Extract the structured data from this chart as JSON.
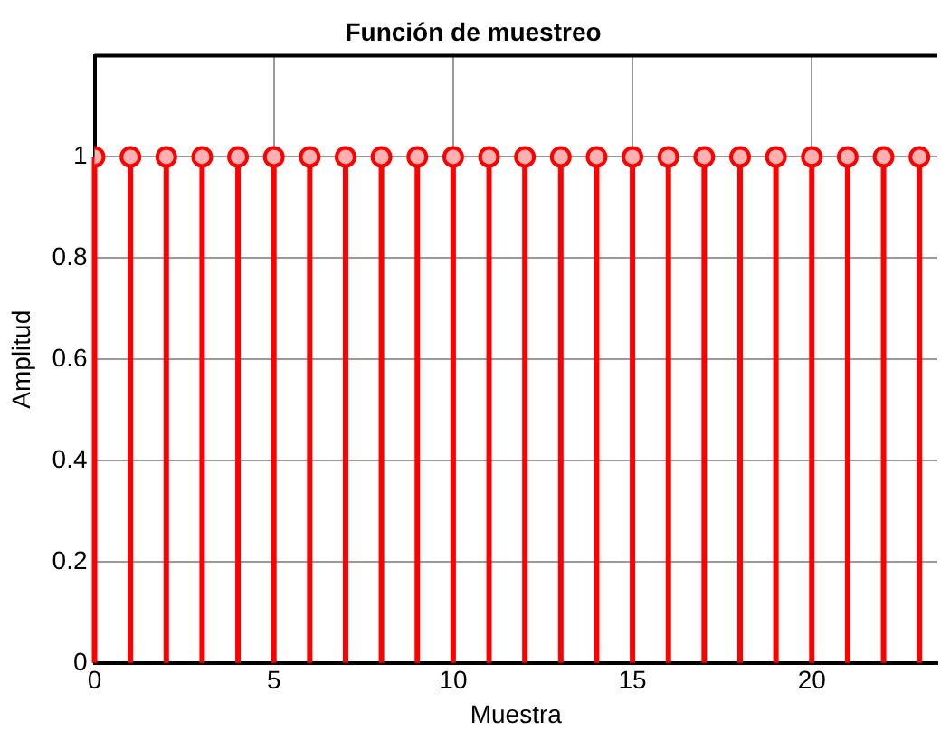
{
  "chart_data": {
    "type": "lollipop",
    "title": "Función de muestreo",
    "xlabel": "Muestra",
    "ylabel": "Amplitud",
    "x": [
      0,
      1,
      2,
      3,
      4,
      5,
      6,
      7,
      8,
      9,
      10,
      11,
      12,
      13,
      14,
      15,
      16,
      17,
      18,
      19,
      20,
      21,
      22,
      23
    ],
    "values": [
      1,
      1,
      1,
      1,
      1,
      1,
      1,
      1,
      1,
      1,
      1,
      1,
      1,
      1,
      1,
      1,
      1,
      1,
      1,
      1,
      1,
      1,
      1,
      1
    ],
    "color": "#ff0000",
    "marker": "circle",
    "xlim": [
      0,
      23.5
    ],
    "xticks": [
      0,
      5,
      10,
      15,
      20
    ],
    "ylim": [
      0,
      1.2
    ],
    "yticks": [
      0,
      0.2,
      0.4,
      0.6,
      0.8,
      1
    ],
    "grid": true,
    "legend": false
  }
}
